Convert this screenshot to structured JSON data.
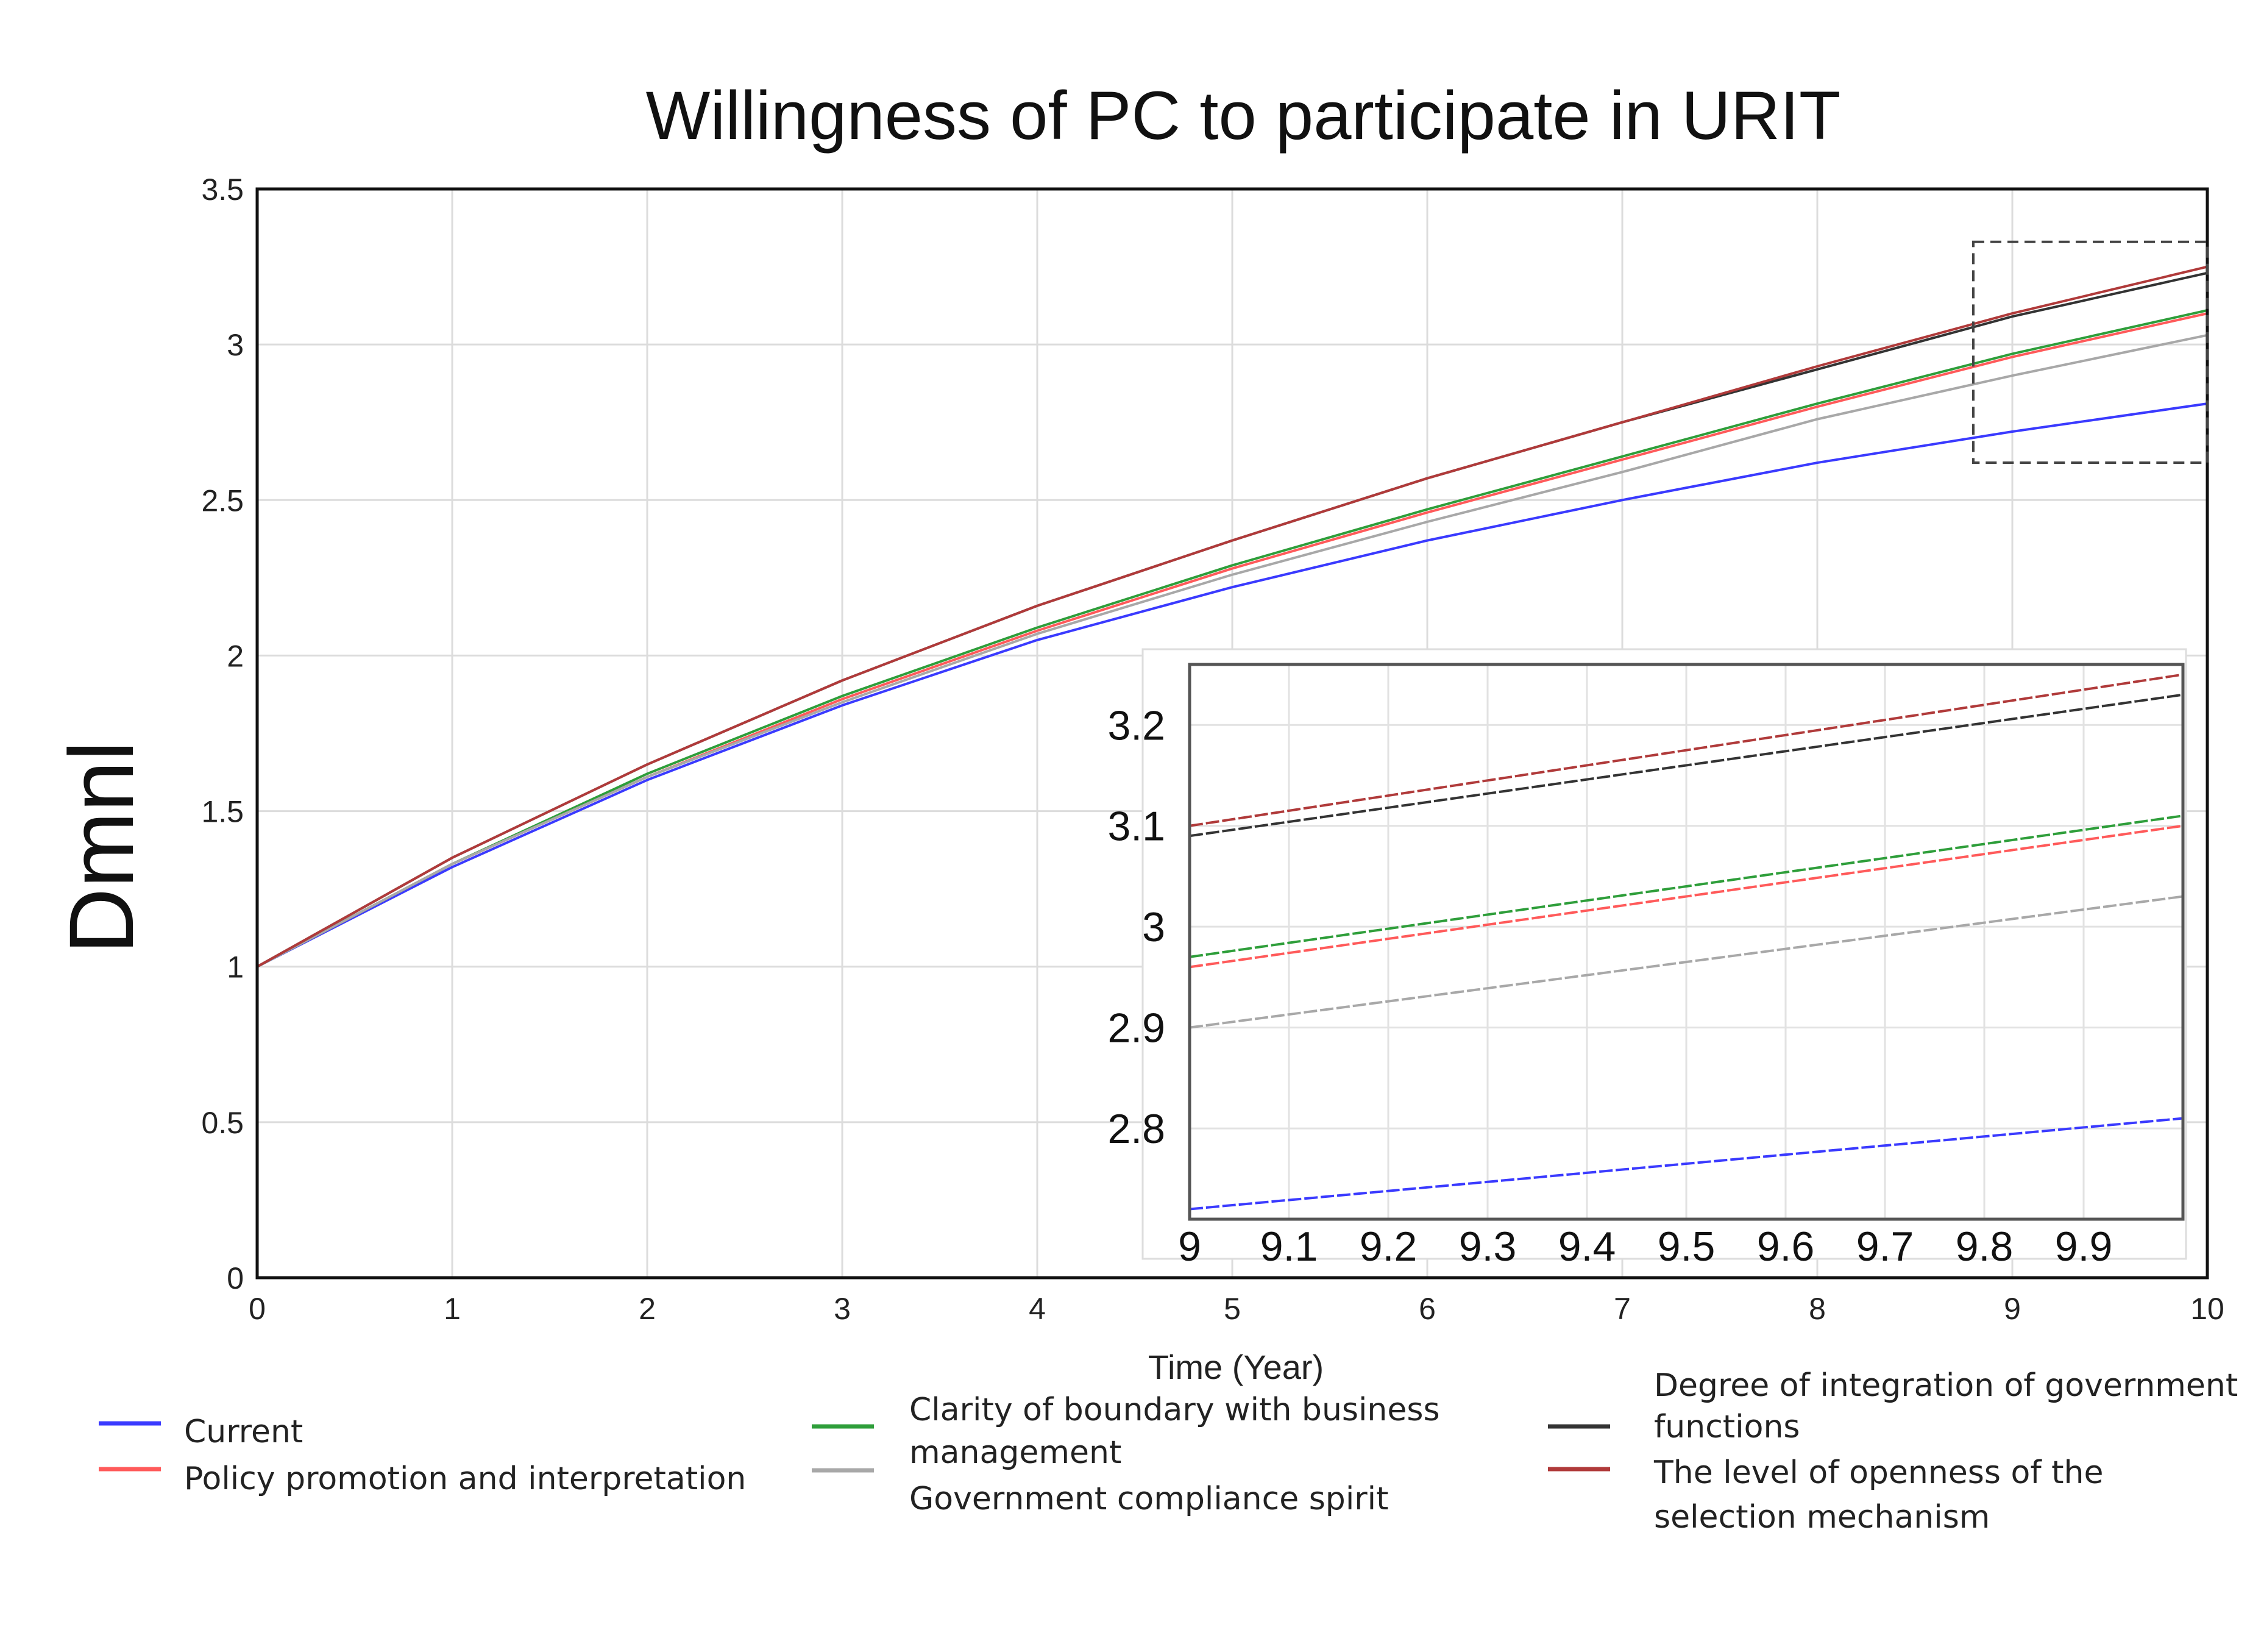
{
  "chart_data": {
    "type": "line",
    "title": "Willingness of PC to participate in URIT",
    "xlabel": "Time (Year)",
    "ylabel": "Dmnl",
    "xlim": [
      0,
      10
    ],
    "ylim": [
      0,
      3.5
    ],
    "x_ticks": [
      "0",
      "1",
      "2",
      "3",
      "4",
      "5",
      "6",
      "7",
      "8",
      "9",
      "10"
    ],
    "y_ticks": [
      "0",
      "0.5",
      "1",
      "1.5",
      "2",
      "2.5",
      "3",
      "3.5"
    ],
    "grid": true,
    "x": [
      0,
      1,
      2,
      3,
      4,
      5,
      6,
      7,
      8,
      9,
      10
    ],
    "series": [
      {
        "name": "Current",
        "color": "#3a3aff",
        "values": [
          1.0,
          1.32,
          1.6,
          1.84,
          2.05,
          2.22,
          2.37,
          2.5,
          2.62,
          2.72,
          2.81
        ]
      },
      {
        "name": "Policy promotion and interpretation",
        "color": "#ff5a5a",
        "values": [
          1.0,
          1.33,
          1.61,
          1.86,
          2.08,
          2.28,
          2.46,
          2.63,
          2.8,
          2.96,
          3.1
        ]
      },
      {
        "name": "Clarity of boundary with business management",
        "color": "#2e9e3a",
        "values": [
          1.0,
          1.33,
          1.62,
          1.87,
          2.09,
          2.29,
          2.47,
          2.64,
          2.81,
          2.97,
          3.11
        ]
      },
      {
        "name": "Government compliance spirit",
        "color": "#a8a8a8",
        "values": [
          1.0,
          1.33,
          1.61,
          1.85,
          2.07,
          2.26,
          2.43,
          2.59,
          2.76,
          2.9,
          3.03
        ]
      },
      {
        "name": "Degree of integration of government functions",
        "color": "#333333",
        "values": [
          1.0,
          1.35,
          1.65,
          1.92,
          2.16,
          2.37,
          2.57,
          2.75,
          2.92,
          3.09,
          3.23
        ]
      },
      {
        "name": "The level of openness of the selection mechanism",
        "color": "#b03a3a",
        "values": [
          1.0,
          1.35,
          1.65,
          1.92,
          2.16,
          2.37,
          2.57,
          2.75,
          2.93,
          3.1,
          3.25
        ]
      }
    ],
    "legend": {
      "placement": "bottom",
      "entries": [
        {
          "lines": [
            "Current"
          ]
        },
        {
          "lines": [
            "Policy promotion and interpretation"
          ]
        },
        {
          "lines": [
            "Clarity of boundary with business",
            "management"
          ]
        },
        {
          "lines": [
            "Government compliance spirit"
          ]
        },
        {
          "lines": [
            "Degree of integration of government",
            "functions"
          ]
        },
        {
          "lines": [
            "The level of openness of the",
            "selection mechanism"
          ]
        }
      ]
    },
    "inset": {
      "xlim": [
        9,
        10
      ],
      "ylim": [
        2.71,
        3.26
      ],
      "x_ticks": [
        "9",
        "9.1",
        "9.2",
        "9.3",
        "9.4",
        "9.5",
        "9.6",
        "9.7",
        "9.8",
        "9.9"
      ],
      "y_ticks": [
        "2.8",
        "2.9",
        "3",
        "3.1",
        "3.2"
      ],
      "zoom_region": {
        "x": [
          8.8,
          10
        ],
        "y": [
          2.62,
          3.33
        ]
      }
    }
  }
}
